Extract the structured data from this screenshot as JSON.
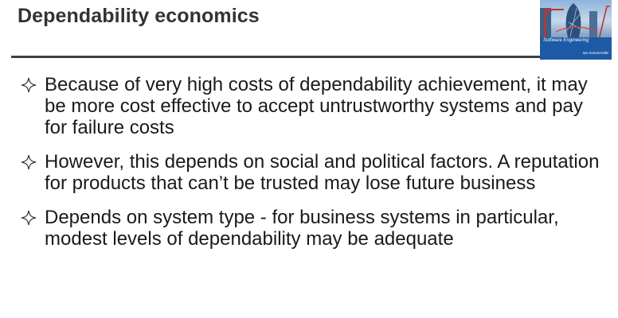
{
  "slide": {
    "title": "Dependability economics",
    "bullets": [
      "Because of very high costs of dependability achievement, it may be more cost effective to accept untrustworthy systems and pay for failure costs",
      "However, this depends on social and political factors. A reputation for products  that can’t be trusted may lose future business",
      "Depends on system type - for business systems in particular, modest levels of dependability may be adequate"
    ]
  },
  "book_cover": {
    "title": "Software Engineering",
    "author": "Ian Sommerville"
  },
  "colors": {
    "title": "#333333",
    "rule": "#3f3f3f",
    "text": "#1a1a1a",
    "cover_band": "#1d5aa6"
  },
  "icons": {
    "bullet": "four-point-star-outline-icon"
  }
}
